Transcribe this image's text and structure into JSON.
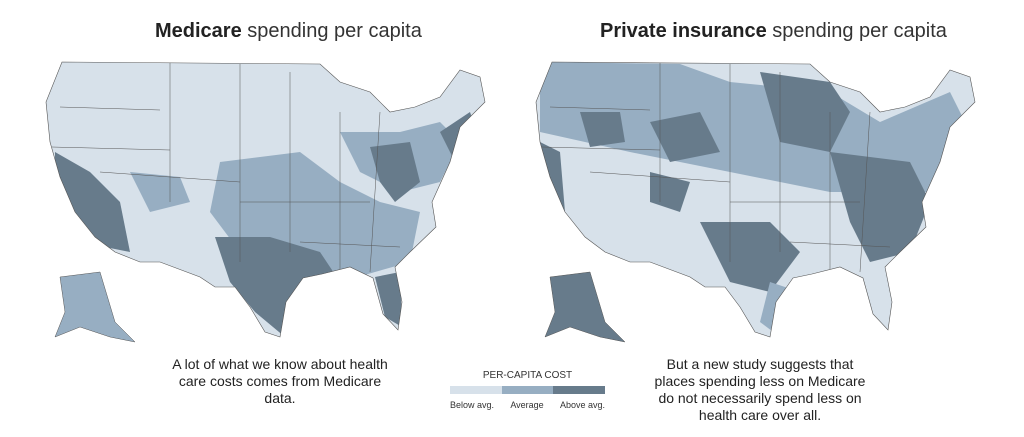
{
  "left_map": {
    "title_bold": "Medicare",
    "title_rest": " spending per capita",
    "caption": "A lot of what we know about health care costs comes from Medicare data."
  },
  "right_map": {
    "title_bold": "Private insurance",
    "title_rest": " spending per capita",
    "caption": "But a new study suggests that places spending less on Medicare do not necessarily spend less on health care over all."
  },
  "legend": {
    "title": "PER-CAPITA COST",
    "items": [
      {
        "label": "Below avg.",
        "color": "#d7e1ea"
      },
      {
        "label": "Average",
        "color": "#97aec2"
      },
      {
        "label": "Above avg.",
        "color": "#677b8b"
      }
    ]
  }
}
